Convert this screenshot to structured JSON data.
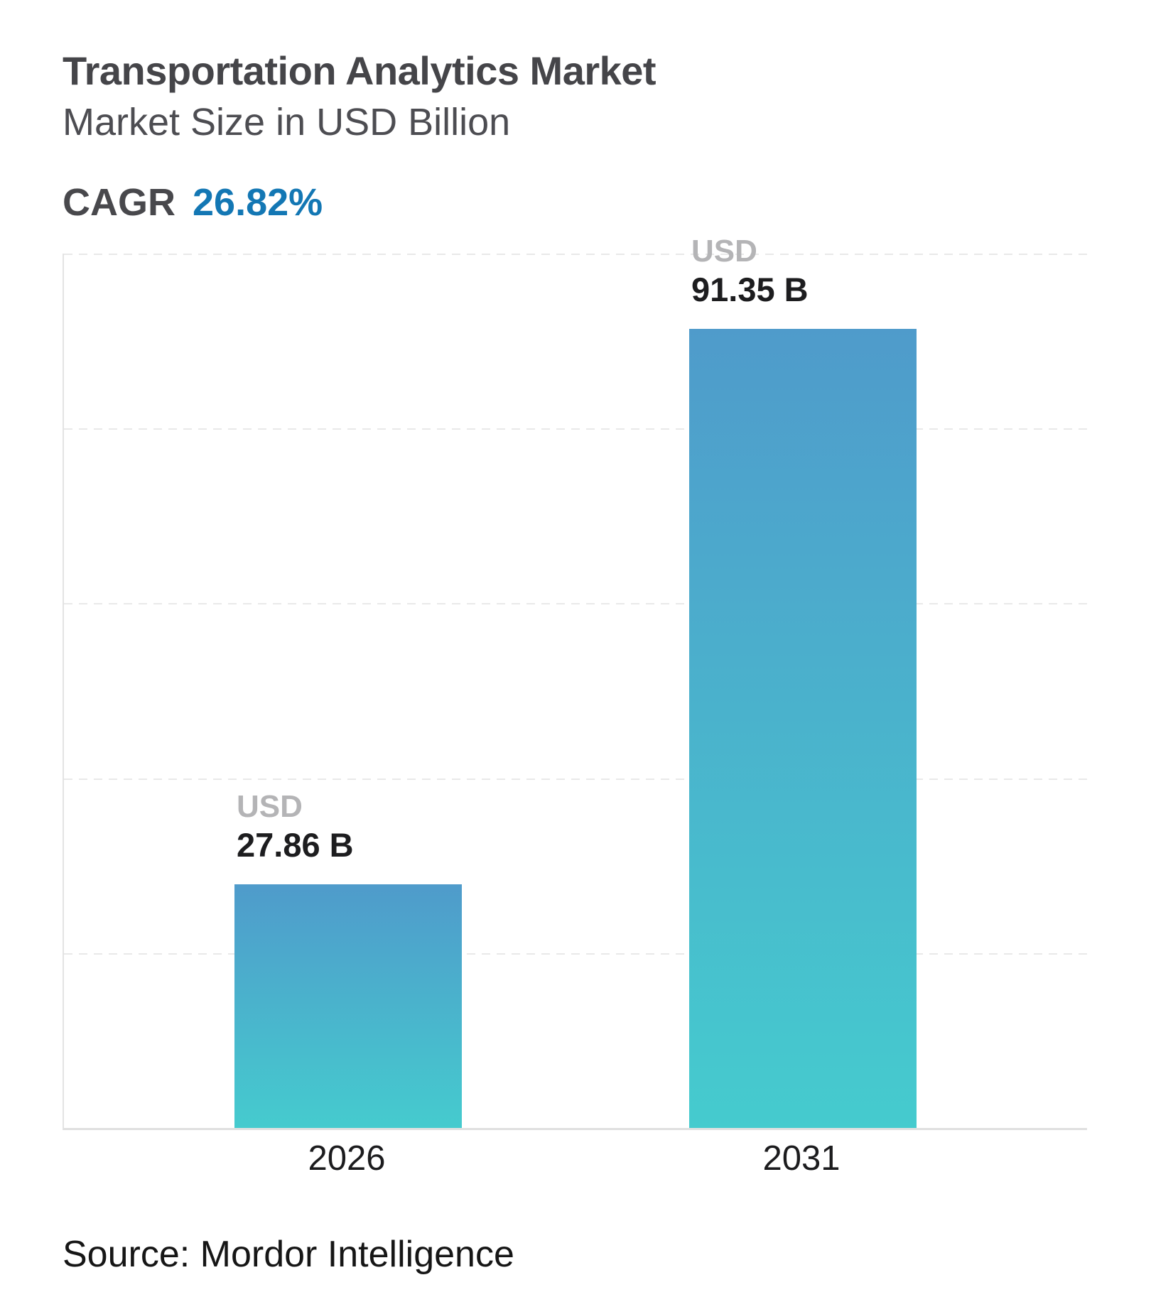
{
  "header": {
    "title": "Transportation Analytics Market",
    "subtitle": "Market Size in USD Billion",
    "cagr_label": "CAGR",
    "cagr_value": "26.82%"
  },
  "chart_data": {
    "type": "bar",
    "title": "Transportation Analytics Market",
    "subtitle": "Market Size in USD Billion",
    "cagr": "26.82%",
    "categories": [
      "2026",
      "2031"
    ],
    "values": [
      27.86,
      91.35
    ],
    "bar_labels": [
      {
        "currency": "USD",
        "amount": "27.86 B"
      },
      {
        "currency": "USD",
        "amount": "91.35 B"
      }
    ],
    "unit": "USD Billion",
    "xlabel": "",
    "ylabel": "",
    "ylim": [
      0,
      100
    ],
    "gridline_interval": 20,
    "grid": "dashed-horizontal, y-axis hidden tick labels",
    "legend": "none",
    "colors": {
      "bar_gradient_top": "#4f9bcb",
      "bar_gradient_bottom": "#45cbce",
      "accent_blue": "#1377b4",
      "title_gray": "#454549",
      "usd_label_gray": "#b4b4b6",
      "value_black": "#1d1d1f",
      "gridline": "#e9e9e9"
    }
  },
  "footer": {
    "source": "Source: Mordor Intelligence"
  }
}
